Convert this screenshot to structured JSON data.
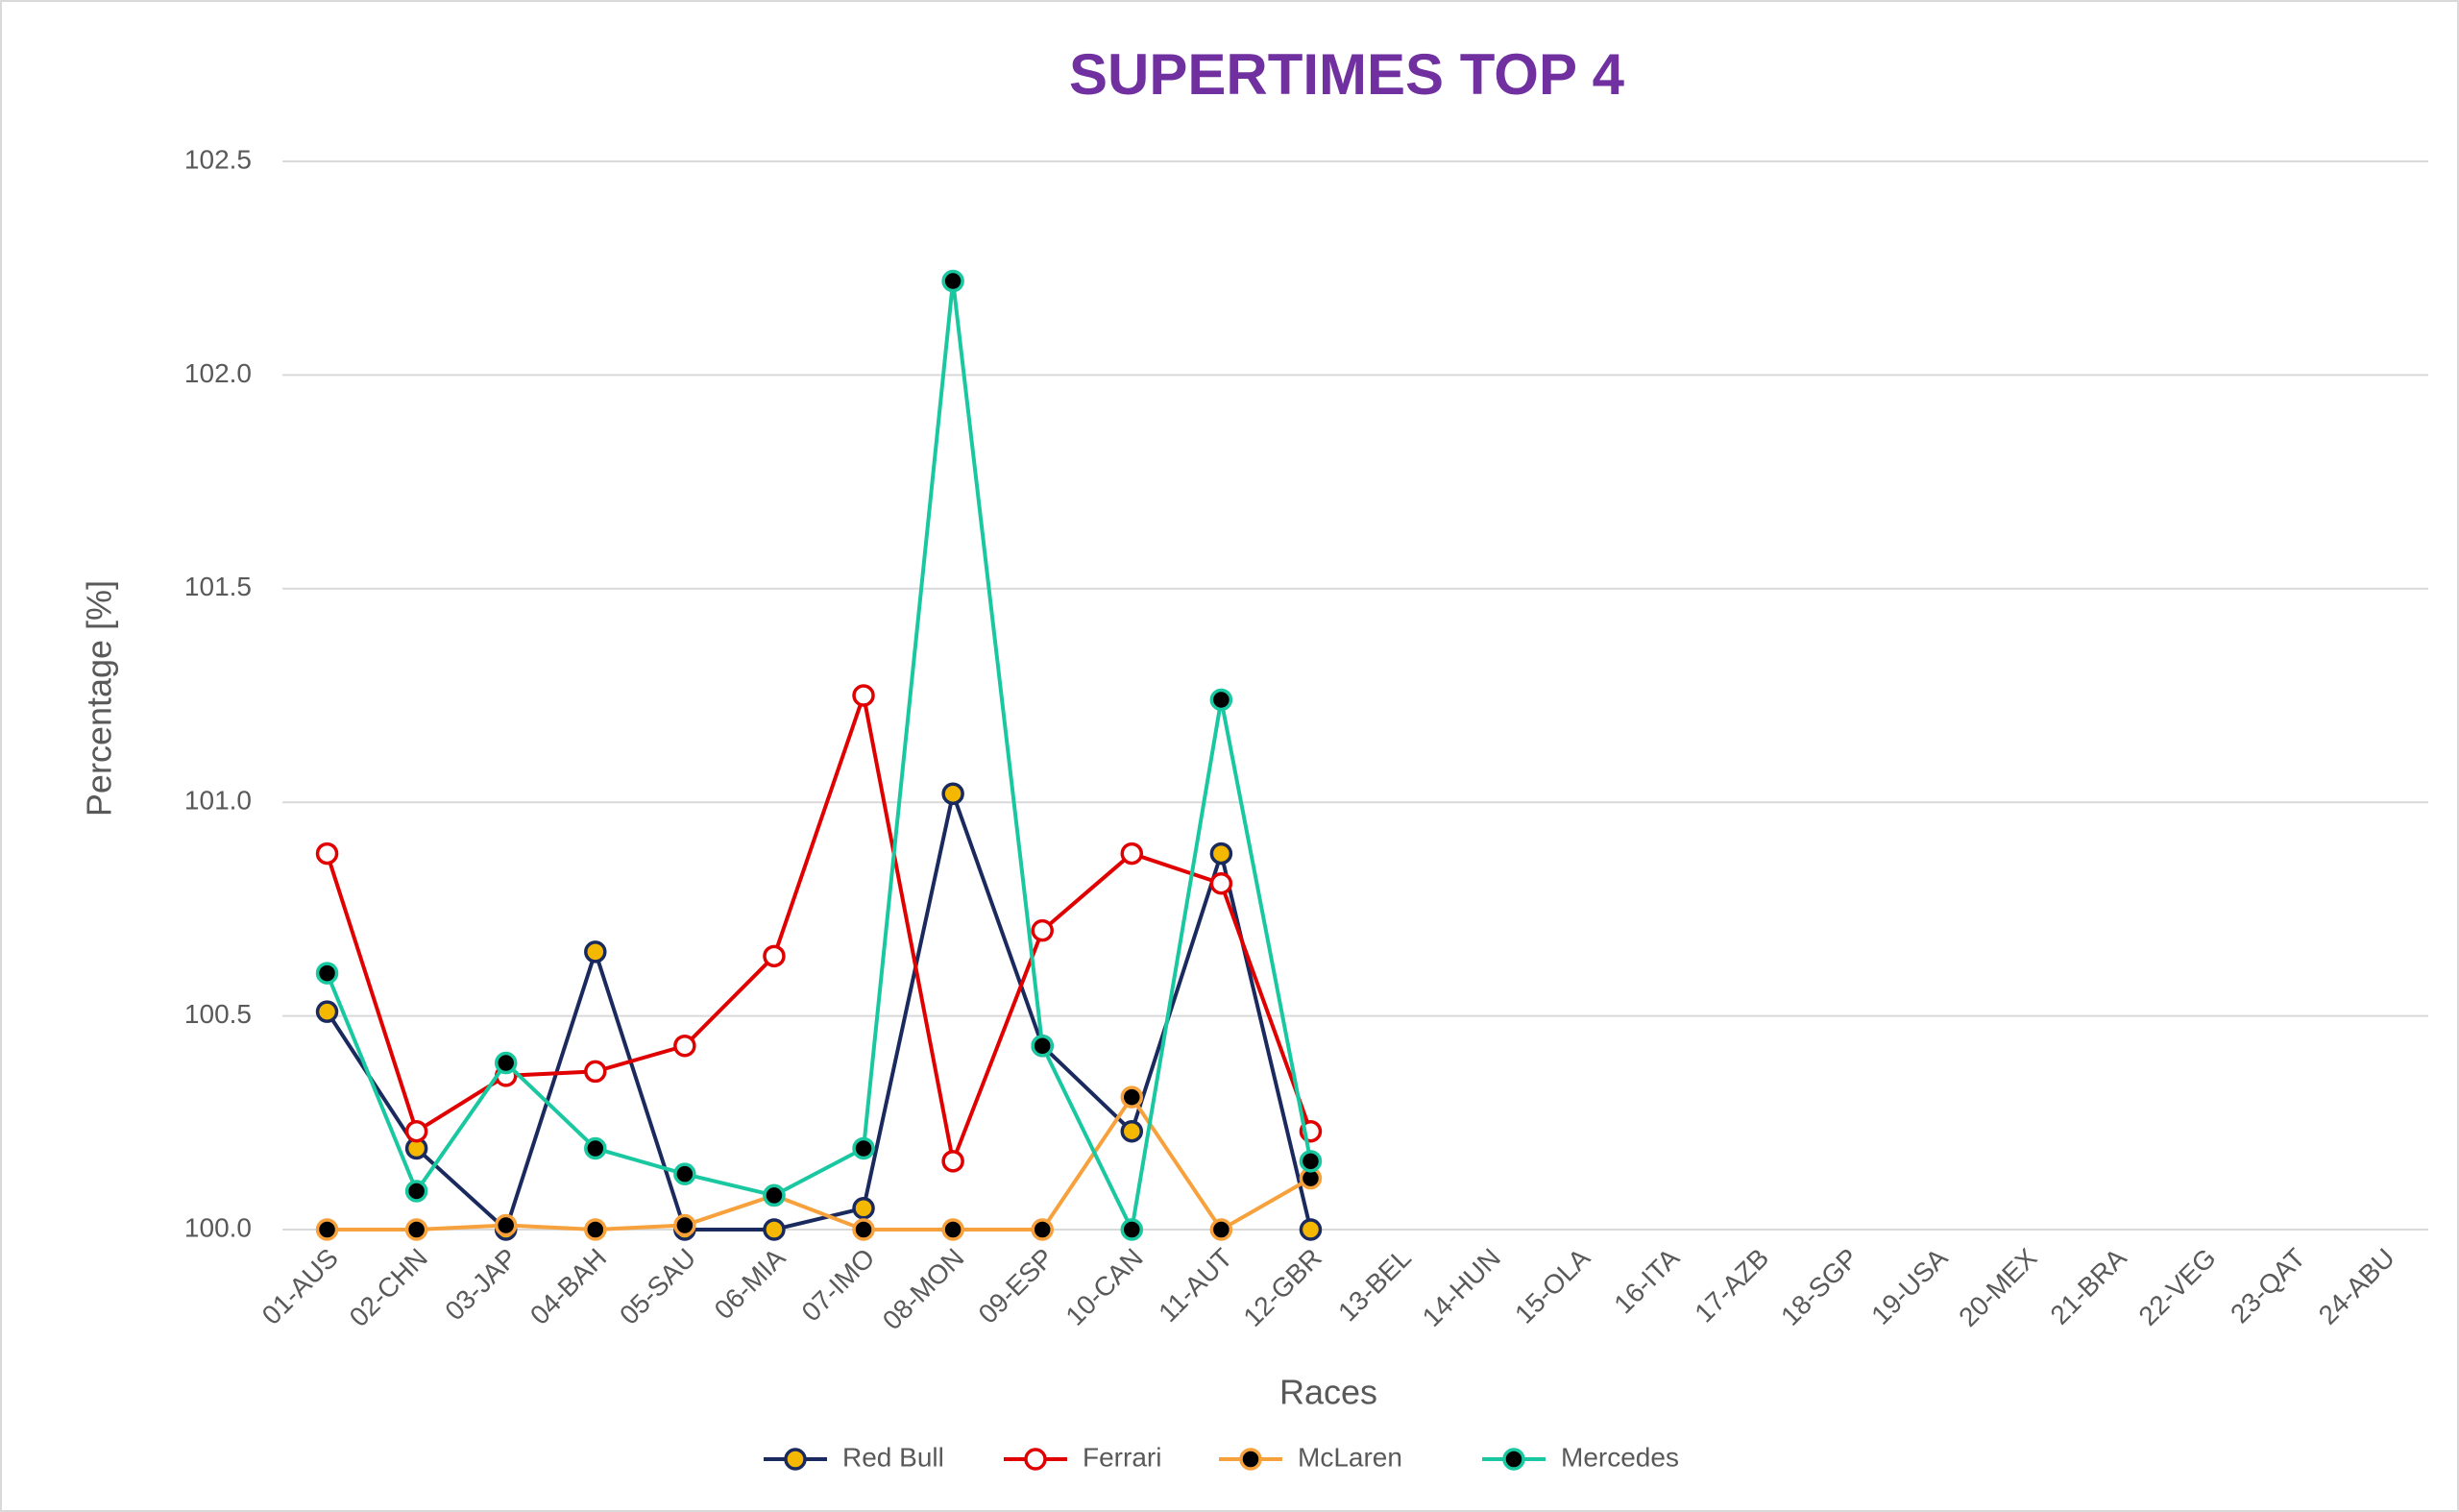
{
  "chart_data": {
    "type": "line",
    "title": "SUPERTIMES TOP 4",
    "xlabel": "Races",
    "ylabel": "Percentage [%]",
    "categories": [
      "01-AUS",
      "02-CHN",
      "03-JAP",
      "04-BAH",
      "05-SAU",
      "06-MIA",
      "07-IMO",
      "08-MON",
      "09-ESP",
      "10-CAN",
      "11-AUT",
      "12-GBR",
      "13-BEL",
      "14-HUN",
      "15-OLA",
      "16-ITA",
      "17-AZB",
      "18-SGP",
      "19-USA",
      "20-MEX",
      "21-BRA",
      "22-VEG",
      "23-QAT",
      "24-ABU"
    ],
    "series": [
      {
        "name": "Red Bull",
        "color": "#1b2a5e",
        "marker_fill": "#f5b800",
        "values": [
          100.51,
          100.19,
          100.0,
          100.65,
          100.0,
          100.0,
          100.05,
          101.02,
          100.43,
          100.23,
          100.88,
          100.0,
          null,
          null,
          null,
          null,
          null,
          null,
          null,
          null,
          null,
          null,
          null,
          null
        ]
      },
      {
        "name": "Ferrari",
        "color": "#e00000",
        "marker_fill": "#ffffff",
        "values": [
          100.88,
          100.23,
          100.36,
          100.37,
          100.43,
          100.64,
          101.25,
          100.16,
          100.7,
          100.88,
          100.81,
          100.23,
          null,
          null,
          null,
          null,
          null,
          null,
          null,
          null,
          null,
          null,
          null,
          null
        ]
      },
      {
        "name": "McLaren",
        "color": "#f7a13c",
        "marker_fill": "#000000",
        "values": [
          100.0,
          100.0,
          100.01,
          100.0,
          100.01,
          100.08,
          100.0,
          100.0,
          100.0,
          100.31,
          100.0,
          100.12,
          null,
          null,
          null,
          null,
          null,
          null,
          null,
          null,
          null,
          null,
          null,
          null
        ]
      },
      {
        "name": "Mercedes",
        "color": "#19c8a0",
        "marker_fill": "#000000",
        "values": [
          100.6,
          100.09,
          100.39,
          100.19,
          100.13,
          100.08,
          100.19,
          102.22,
          100.43,
          100.0,
          101.24,
          100.16,
          null,
          null,
          null,
          null,
          null,
          null,
          null,
          null,
          null,
          null,
          null,
          null
        ]
      }
    ],
    "ylim": [
      100.0,
      102.5
    ],
    "yticks": [
      {
        "value": 100.0,
        "label": "100.0"
      },
      100.5,
      {
        "value": 101.0,
        "label": "101.0"
      },
      101.5,
      {
        "value": 102.0,
        "label": "102.0"
      },
      102.5
    ],
    "grid": true,
    "legend": "bottom"
  }
}
